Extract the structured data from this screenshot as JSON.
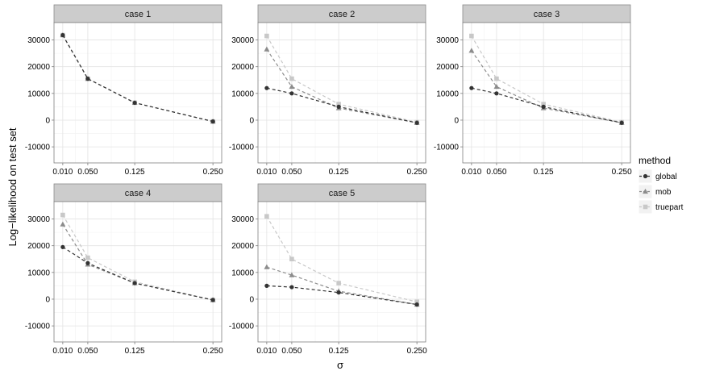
{
  "chart_data": {
    "type": "line",
    "facet_by": "case",
    "xlabel": "σ",
    "ylabel": "Log−likelihood on test set",
    "x_ticks": [
      0.01,
      0.05,
      0.125,
      0.25
    ],
    "x_tick_labels": [
      "0.010",
      "0.050",
      "0.125",
      "0.250"
    ],
    "y_ticks": [
      -10000,
      0,
      10000,
      20000,
      30000
    ],
    "y_tick_labels": [
      "-10000",
      "0",
      "10000",
      "20000",
      "30000"
    ],
    "xlim": [
      -0.004,
      0.264
    ],
    "ylim": [
      -16000,
      36500
    ],
    "grid": true,
    "legend": {
      "title": "method",
      "placement": "right",
      "entries": [
        {
          "name": "global",
          "color": "#333333",
          "marker": "circle"
        },
        {
          "name": "mob",
          "color": "#8c8c8c",
          "marker": "triangle"
        },
        {
          "name": "truepart",
          "color": "#c8c8c8",
          "marker": "square"
        }
      ]
    },
    "panels": [
      {
        "title": "case 1",
        "series": [
          {
            "name": "global",
            "x": [
              0.01,
              0.05,
              0.125,
              0.25
            ],
            "values": [
              31800,
              15500,
              6500,
              -500
            ]
          },
          {
            "name": "mob",
            "x": [
              0.01,
              0.05,
              0.125,
              0.25
            ],
            "values": [
              31800,
              15500,
              6500,
              -500
            ]
          },
          {
            "name": "truepart",
            "x": [
              0.01,
              0.05,
              0.125,
              0.25
            ],
            "values": [
              31800,
              15500,
              6500,
              -500
            ]
          }
        ]
      },
      {
        "title": "case 2",
        "series": [
          {
            "name": "global",
            "x": [
              0.01,
              0.05,
              0.125,
              0.25
            ],
            "values": [
              12000,
              10000,
              5000,
              -1000
            ]
          },
          {
            "name": "mob",
            "x": [
              0.01,
              0.05,
              0.125,
              0.25
            ],
            "values": [
              26500,
              12500,
              4500,
              -1000
            ]
          },
          {
            "name": "truepart",
            "x": [
              0.01,
              0.05,
              0.125,
              0.25
            ],
            "values": [
              31500,
              15500,
              6000,
              -800
            ]
          }
        ]
      },
      {
        "title": "case 3",
        "series": [
          {
            "name": "global",
            "x": [
              0.01,
              0.05,
              0.125,
              0.25
            ],
            "values": [
              12000,
              10000,
              5000,
              -1000
            ]
          },
          {
            "name": "mob",
            "x": [
              0.01,
              0.05,
              0.125,
              0.25
            ],
            "values": [
              26000,
              12500,
              4500,
              -1000
            ]
          },
          {
            "name": "truepart",
            "x": [
              0.01,
              0.05,
              0.125,
              0.25
            ],
            "values": [
              31500,
              15500,
              6000,
              -800
            ]
          }
        ]
      },
      {
        "title": "case 4",
        "series": [
          {
            "name": "global",
            "x": [
              0.01,
              0.05,
              0.125,
              0.25
            ],
            "values": [
              19500,
              13500,
              6000,
              -300
            ]
          },
          {
            "name": "mob",
            "x": [
              0.01,
              0.05,
              0.125,
              0.25
            ],
            "values": [
              28000,
              13000,
              6000,
              -300
            ]
          },
          {
            "name": "truepart",
            "x": [
              0.01,
              0.05,
              0.125,
              0.25
            ],
            "values": [
              31500,
              15500,
              6500,
              -300
            ]
          }
        ]
      },
      {
        "title": "case 5",
        "series": [
          {
            "name": "global",
            "x": [
              0.01,
              0.05,
              0.125,
              0.25
            ],
            "values": [
              5000,
              4500,
              2500,
              -2000
            ]
          },
          {
            "name": "mob",
            "x": [
              0.01,
              0.05,
              0.125,
              0.25
            ],
            "values": [
              12000,
              9000,
              3000,
              -2000
            ]
          },
          {
            "name": "truepart",
            "x": [
              0.01,
              0.05,
              0.125,
              0.25
            ],
            "values": [
              31000,
              15000,
              6000,
              -1000
            ]
          }
        ]
      }
    ]
  }
}
